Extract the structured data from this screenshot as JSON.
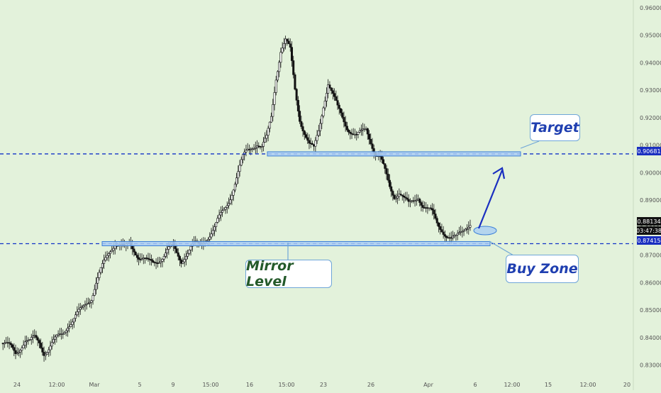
{
  "colors": {
    "background": "#e3f2db",
    "candle": "#111111",
    "level_line": "#1233c8",
    "zone_fill": "#a9cdf3",
    "zone_border": "#3c7fd8",
    "arrow": "#1a2fc0",
    "current_price_bg": "#111111",
    "level_price_bg": "#1a2fc0"
  },
  "price_axis": {
    "ticks": [
      "0.96000",
      "0.95000",
      "0.94000",
      "0.93000",
      "0.92000",
      "0.91000",
      "0.90000",
      "0.89000",
      "0.88000",
      "0.87000",
      "0.86000",
      "0.85000",
      "0.84000",
      "0.83000"
    ],
    "current_price": "0.88134",
    "countdown": "03:47:38",
    "target_price": "0.90681",
    "mirror_price": "0.87415"
  },
  "time_axis": {
    "ticks": [
      "24",
      "12:00",
      "Mar",
      "5",
      "9",
      "15:00",
      "16",
      "15:00",
      "23",
      "26",
      "Apr",
      "6",
      "12:00",
      "15",
      "12:00",
      "20"
    ]
  },
  "annotations": {
    "target": "Target",
    "mirror": "Mirror Level",
    "buy_zone": "Buy Zone"
  },
  "chart_data": {
    "type": "candlestick",
    "y_range": [
      0.8255,
      0.9615
    ],
    "levels": [
      {
        "label": "Target",
        "price": 0.90681
      },
      {
        "label": "Mirror Level",
        "price": 0.87415
      }
    ],
    "price_path": [
      0.838,
      0.837,
      0.836,
      0.8345,
      0.837,
      0.839,
      0.838,
      0.8395,
      0.8385,
      0.835,
      0.836,
      0.838,
      0.84,
      0.842,
      0.845,
      0.846,
      0.848,
      0.85,
      0.853,
      0.855,
      0.86,
      0.864,
      0.868,
      0.872,
      0.875,
      0.874,
      0.872,
      0.8735,
      0.872,
      0.87,
      0.869,
      0.867,
      0.8665,
      0.868,
      0.87,
      0.872,
      0.873,
      0.87,
      0.868,
      0.871,
      0.873,
      0.8735,
      0.873,
      0.876,
      0.878,
      0.88,
      0.883,
      0.886,
      0.89,
      0.895,
      0.9,
      0.905,
      0.908,
      0.91,
      0.911,
      0.909,
      0.912,
      0.92,
      0.935,
      0.945,
      0.948,
      0.944,
      0.93,
      0.92,
      0.915,
      0.91,
      0.908,
      0.915,
      0.925,
      0.933,
      0.928,
      0.923,
      0.92,
      0.917,
      0.915,
      0.913,
      0.914,
      0.916,
      0.912,
      0.907,
      0.905,
      0.9,
      0.895,
      0.892,
      0.893,
      0.89,
      0.888,
      0.89,
      0.892,
      0.888,
      0.886,
      0.885,
      0.882,
      0.88,
      0.877,
      0.875,
      0.876,
      0.879,
      0.881,
      0.8813
    ]
  }
}
